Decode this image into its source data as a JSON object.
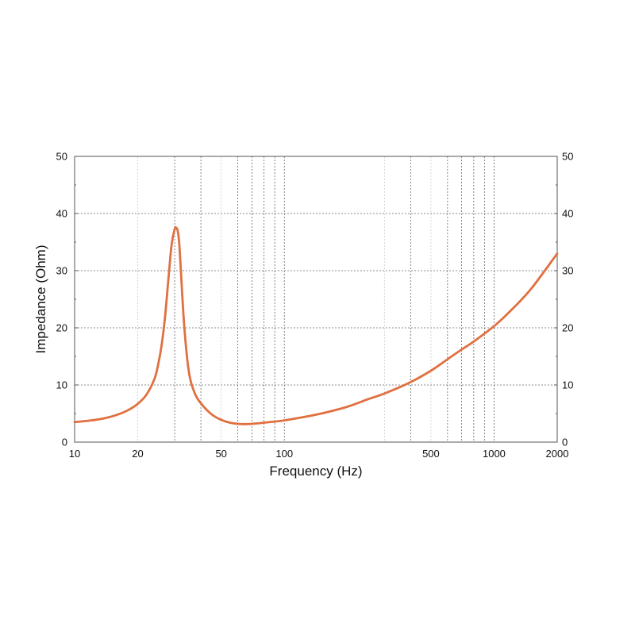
{
  "chart_data": {
    "type": "line",
    "title": "",
    "xlabel": "Frequency (Hz)",
    "ylabel": "Impedance (Ohm)",
    "xscale": "log",
    "xlim": [
      10,
      2000
    ],
    "ylim": [
      0,
      50
    ],
    "x_tick_labels": [
      "10",
      "20",
      "50",
      "100",
      "500",
      "1000",
      "2000"
    ],
    "x_tick_values": [
      10,
      20,
      50,
      100,
      500,
      1000,
      2000
    ],
    "y_tick_labels": [
      "0",
      "10",
      "20",
      "30",
      "40",
      "50"
    ],
    "y_tick_values": [
      0,
      10,
      20,
      30,
      40,
      50
    ],
    "y_ticks_both_sides": true,
    "grid": true,
    "major_grid_y": [
      10,
      20,
      30,
      40
    ],
    "major_grid_x": [
      30,
      40,
      60,
      70,
      80,
      90,
      100,
      400,
      600,
      700,
      800,
      900,
      1000
    ],
    "minor_grid_x": [
      20,
      50,
      300,
      500
    ],
    "legend": "none",
    "line_color": "#e07040",
    "series": [
      {
        "x": [
          10,
          12,
          14,
          16,
          18,
          20,
          22,
          24,
          25,
          26,
          27,
          28,
          29,
          30,
          30.5,
          31,
          31.5,
          32,
          33,
          34,
          35,
          36,
          38,
          40,
          43,
          46,
          50,
          55,
          60,
          65,
          70,
          80,
          90,
          100,
          120,
          150,
          200,
          250,
          300,
          400,
          500,
          600,
          700,
          800,
          1000,
          1200,
          1500,
          2000
        ],
        "y": [
          3.5,
          3.8,
          4.2,
          4.8,
          5.6,
          6.7,
          8.3,
          11.0,
          13.5,
          17.0,
          22.0,
          28.5,
          34.5,
          37.3,
          37.5,
          37.0,
          35.0,
          31.0,
          22.5,
          16.5,
          12.5,
          10.3,
          8.0,
          6.8,
          5.5,
          4.6,
          3.9,
          3.4,
          3.2,
          3.15,
          3.2,
          3.4,
          3.6,
          3.8,
          4.3,
          5.0,
          6.2,
          7.5,
          8.5,
          10.5,
          12.5,
          14.5,
          16.2,
          17.6,
          20.3,
          23.0,
          26.8,
          33.0
        ]
      }
    ]
  }
}
